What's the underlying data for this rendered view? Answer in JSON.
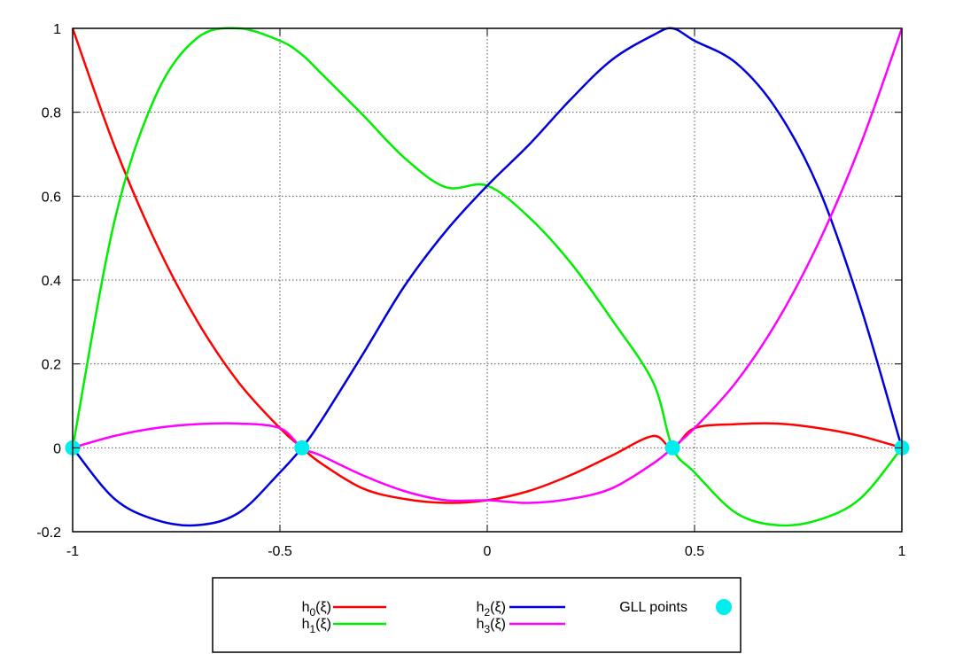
{
  "chart_data": {
    "type": "line",
    "title": "",
    "xlabel": "",
    "ylabel": "",
    "xlim": [
      -1,
      1
    ],
    "ylim": [
      -0.2,
      1
    ],
    "grid": true,
    "grid_style": "dotted",
    "legend_position": "bottom-outside",
    "x_ticks": [
      {
        "value": -1,
        "label": "-1"
      },
      {
        "value": -0.5,
        "label": "-0.5"
      },
      {
        "value": 0,
        "label": "0"
      },
      {
        "value": 0.5,
        "label": "0.5"
      },
      {
        "value": 1,
        "label": "1"
      }
    ],
    "y_ticks": [
      {
        "value": -0.2,
        "label": "-0.2"
      },
      {
        "value": 0,
        "label": "0"
      },
      {
        "value": 0.2,
        "label": "0.2"
      },
      {
        "value": 0.4,
        "label": "0.4"
      },
      {
        "value": 0.6,
        "label": "0.6"
      },
      {
        "value": 0.8,
        "label": "0.8"
      },
      {
        "value": 1,
        "label": "1"
      }
    ],
    "x": [
      -1.0,
      -0.9,
      -0.8,
      -0.7,
      -0.6,
      -0.5,
      -0.447,
      -0.4,
      -0.3,
      -0.2,
      -0.1,
      0.0,
      0.1,
      0.2,
      0.3,
      0.4,
      0.447,
      0.5,
      0.6,
      0.7,
      0.8,
      0.9,
      1.0
    ],
    "series": [
      {
        "name": "h",
        "sub": "0",
        "suffix": "(ξ)",
        "color": "#ff0000",
        "values": [
          1.0,
          0.7219,
          0.4906,
          0.3031,
          0.1563,
          0.0469,
          0.0,
          -0.0375,
          -0.0969,
          -0.1219,
          -0.1313,
          -0.125,
          -0.1031,
          -0.0656,
          -0.0188,
          0.0281,
          0.0,
          0.0469,
          0.0563,
          0.0578,
          0.0469,
          0.0281,
          0.0
        ]
      },
      {
        "name": "h",
        "sub": "1",
        "suffix": "(ξ)",
        "color": "#00ee00",
        "values": [
          0.0,
          0.5366,
          0.8385,
          0.9767,
          1.0,
          0.9704,
          0.9375,
          0.8921,
          0.7935,
          0.6915,
          0.6213,
          0.625,
          0.5504,
          0.4427,
          0.3066,
          0.1565,
          0.0,
          -0.0586,
          -0.1553,
          -0.1845,
          -0.1716,
          -0.1208,
          0.0
        ]
      },
      {
        "name": "h",
        "sub": "2",
        "suffix": "(ξ)",
        "color": "#0000dd",
        "values": [
          0.0,
          -0.1208,
          -0.1716,
          -0.1845,
          -0.1553,
          -0.0586,
          0.0,
          0.0652,
          0.2232,
          0.3852,
          0.5164,
          0.625,
          0.7218,
          0.8293,
          0.9245,
          0.9837,
          1.0,
          0.9704,
          0.9177,
          0.8035,
          0.6173,
          0.3385,
          0.0
        ]
      },
      {
        "name": "h",
        "sub": "3",
        "suffix": "(ξ)",
        "color": "#ff00ff",
        "values": [
          0.0,
          0.0281,
          0.0469,
          0.0563,
          0.0578,
          0.0469,
          0.0,
          -0.0188,
          -0.0656,
          -0.1031,
          -0.125,
          -0.125,
          -0.1313,
          -0.1219,
          -0.0969,
          -0.0375,
          0.0,
          0.0469,
          0.1563,
          0.3031,
          0.4906,
          0.7219,
          1.0
        ]
      }
    ],
    "points": {
      "name": "GLL points",
      "color": "#00eeee",
      "x": [
        -1.0,
        -0.447,
        0.447,
        1.0
      ],
      "y": [
        0,
        0,
        0,
        0
      ]
    }
  }
}
